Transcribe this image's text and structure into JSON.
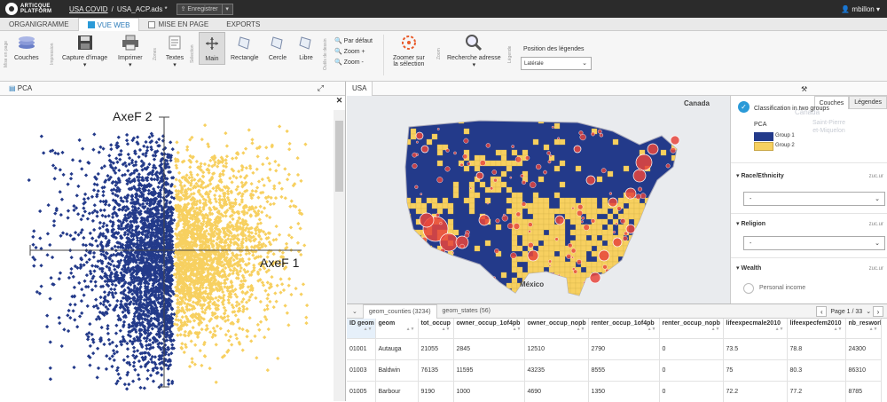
{
  "topbar": {
    "logo_line1": "ARTICQUE",
    "logo_line2": "PLATFORM",
    "breadcrumb_project": "USA COVID",
    "breadcrumb_sep": "/",
    "breadcrumb_file": "USA_ACP.ads *",
    "save_label": "Enregistrer",
    "user_name": "mbillon"
  },
  "tabs": [
    {
      "label": "ORGANIGRAMME"
    },
    {
      "label": "VUE WEB"
    },
    {
      "label": "MISE EN PAGE"
    },
    {
      "label": "EXPORTS"
    }
  ],
  "toolbar": {
    "group_labels": [
      "Mise en page",
      "Impression",
      "Zones",
      "Sélection",
      "Outils de dessin",
      "Zoom",
      "Légende"
    ],
    "couches": "Couches",
    "capture": "Capture d'image",
    "imprimer": "Imprimer",
    "textes": "Textes",
    "main": "Main",
    "rectangle": "Rectangle",
    "cercle": "Cercle",
    "libre": "Libre",
    "zoom_default": "Par défaut",
    "zoom_plus": "Zoom +",
    "zoom_minus": "Zoom -",
    "zoom_selection_1": "Zoomer sur",
    "zoom_selection_2": "la sélection",
    "search_address": "Recherche adresse",
    "legend_position_label": "Position des légendes",
    "legend_position_value": "Latérale"
  },
  "pca_panel": {
    "tab_label": "PCA",
    "axis_y": "AxeF 2",
    "axis_x": "AxeF 1"
  },
  "map_panel": {
    "tab_label": "USA",
    "labels": {
      "canada": "Canada",
      "mexico": "México",
      "saint_pierre_1": "Saint-Pierre",
      "saint_pierre_2": "et-Miquelon",
      "canada_side": "Canada"
    },
    "side_tabs": [
      "Couches",
      "Légendes"
    ],
    "classification_label": "Classification in two groups",
    "pca_title": "PCA",
    "groups": [
      {
        "label": "Group 1",
        "color": "#233a8a"
      },
      {
        "label": "Group 2",
        "color": "#f7d060"
      }
    ],
    "sections": [
      {
        "title": "Race/Ethnicity",
        "value": "-",
        "tag": "zuc.ur"
      },
      {
        "title": "Religion",
        "value": "-",
        "tag": "zuc.ur"
      },
      {
        "title": "Wealth",
        "tag": "zuc.ur",
        "item": "Personal income"
      }
    ]
  },
  "table": {
    "tabs": [
      "geom_counties (3234)",
      "geom_states (56)"
    ],
    "pager": "Page 1 / 33",
    "columns": [
      "ID geom",
      "geom",
      "tot_occup",
      "owner_occup_1of4pb",
      "owner_occup_nopb",
      "renter_occup_1of4pb",
      "renter_occup_nopb",
      "lifeexpecmale2010",
      "lifeexpecfem2010",
      "nb_resworl"
    ],
    "rows": [
      [
        "01001",
        "Autauga",
        "21055",
        "2845",
        "12510",
        "2790",
        "0",
        "73.5",
        "78.8",
        "24300"
      ],
      [
        "01003",
        "Baldwin",
        "76135",
        "11595",
        "43235",
        "8555",
        "0",
        "75",
        "80.3",
        "86310"
      ],
      [
        "01005",
        "Barbour",
        "9190",
        "1000",
        "4690",
        "1350",
        "0",
        "72.2",
        "77.2",
        "8785"
      ]
    ]
  },
  "colors": {
    "group1": "#233a8a",
    "group2": "#f7d060",
    "accent": "#2a9ad8",
    "bubble": "#e8453c"
  }
}
